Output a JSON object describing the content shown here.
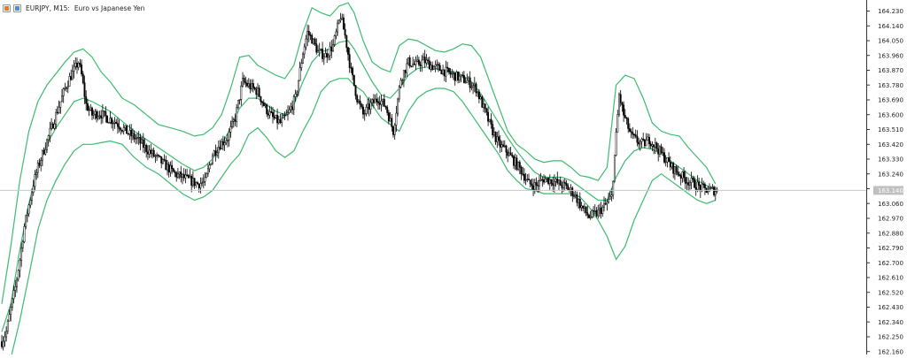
{
  "header": {
    "symbol": "EURJPY, M15:",
    "description": "Euro vs Japanese Yen"
  },
  "price_axis": {
    "ticks": [
      "164.230",
      "164.140",
      "164.050",
      "163.960",
      "163.870",
      "163.780",
      "163.690",
      "163.600",
      "163.510",
      "163.420",
      "163.330",
      "163.240",
      "163.150",
      "163.060",
      "162.970",
      "162.880",
      "162.790",
      "162.700",
      "162.610",
      "162.520",
      "162.430",
      "162.340",
      "162.250",
      "162.160"
    ],
    "current_price": 163.14,
    "current_price_label": "163.140"
  },
  "chart_data": {
    "type": "candlestick",
    "symbol": "EURJPY",
    "timeframe": "M15",
    "indicator": "Bollinger Bands",
    "grid": false,
    "ylim": [
      162.13,
      164.3
    ],
    "anchors": [
      [
        0,
        162.22
      ],
      [
        3,
        162.28
      ],
      [
        6,
        162.42
      ],
      [
        9,
        162.55
      ],
      [
        12,
        162.72
      ],
      [
        15,
        162.92
      ],
      [
        18,
        163.05
      ],
      [
        21,
        163.18
      ],
      [
        24,
        163.28
      ],
      [
        27,
        163.36
      ],
      [
        30,
        163.44
      ],
      [
        33,
        163.52
      ],
      [
        36,
        163.6
      ],
      [
        39,
        163.68
      ],
      [
        42,
        163.76
      ],
      [
        45,
        163.82
      ],
      [
        48,
        163.87
      ],
      [
        51,
        163.92
      ],
      [
        53,
        163.84
      ],
      [
        56,
        163.66
      ],
      [
        60,
        163.6
      ],
      [
        65,
        163.61
      ],
      [
        70,
        163.58
      ],
      [
        75,
        163.56
      ],
      [
        80,
        163.52
      ],
      [
        85,
        163.48
      ],
      [
        90,
        163.45
      ],
      [
        95,
        163.4
      ],
      [
        100,
        163.36
      ],
      [
        105,
        163.32
      ],
      [
        110,
        163.28
      ],
      [
        115,
        163.24
      ],
      [
        120,
        163.22
      ],
      [
        125,
        163.2
      ],
      [
        130,
        163.18
      ],
      [
        135,
        163.19
      ],
      [
        140,
        163.36
      ],
      [
        145,
        163.42
      ],
      [
        150,
        163.46
      ],
      [
        155,
        163.58
      ],
      [
        160,
        163.8
      ],
      [
        165,
        163.77
      ],
      [
        170,
        163.74
      ],
      [
        175,
        163.64
      ],
      [
        180,
        163.58
      ],
      [
        185,
        163.55
      ],
      [
        190,
        163.6
      ],
      [
        195,
        163.7
      ],
      [
        200,
        163.98
      ],
      [
        203,
        164.1
      ],
      [
        206,
        164.06
      ],
      [
        210,
        163.98
      ],
      [
        215,
        163.96
      ],
      [
        220,
        164.02
      ],
      [
        225,
        164.2
      ],
      [
        228,
        164.08
      ],
      [
        232,
        163.86
      ],
      [
        236,
        163.7
      ],
      [
        240,
        163.6
      ],
      [
        245,
        163.66
      ],
      [
        250,
        163.7
      ],
      [
        255,
        163.65
      ],
      [
        260,
        163.5
      ],
      [
        265,
        163.82
      ],
      [
        270,
        163.92
      ],
      [
        275,
        163.9
      ],
      [
        280,
        163.93
      ],
      [
        285,
        163.9
      ],
      [
        290,
        163.88
      ],
      [
        295,
        163.86
      ],
      [
        300,
        163.84
      ],
      [
        305,
        163.82
      ],
      [
        310,
        163.8
      ],
      [
        315,
        163.76
      ],
      [
        320,
        163.64
      ],
      [
        325,
        163.52
      ],
      [
        330,
        163.42
      ],
      [
        335,
        163.38
      ],
      [
        340,
        163.32
      ],
      [
        345,
        163.26
      ],
      [
        350,
        163.18
      ],
      [
        355,
        163.17
      ],
      [
        360,
        163.21
      ],
      [
        365,
        163.2
      ],
      [
        370,
        163.18
      ],
      [
        375,
        163.16
      ],
      [
        380,
        163.12
      ],
      [
        385,
        163.04
      ],
      [
        390,
        162.98
      ],
      [
        395,
        163.0
      ],
      [
        400,
        163.04
      ],
      [
        405,
        163.1
      ],
      [
        410,
        163.72
      ],
      [
        413,
        163.6
      ],
      [
        418,
        163.47
      ],
      [
        422,
        163.44
      ],
      [
        426,
        163.42
      ],
      [
        430,
        163.45
      ],
      [
        435,
        163.4
      ],
      [
        440,
        163.34
      ],
      [
        445,
        163.28
      ],
      [
        450,
        163.24
      ],
      [
        455,
        163.2
      ],
      [
        460,
        163.18
      ],
      [
        465,
        163.15
      ],
      [
        470,
        163.14
      ],
      [
        475,
        163.14
      ]
    ],
    "bollinger_bands": {
      "upper": [
        [
          0,
          162.45
        ],
        [
          6,
          162.8
        ],
        [
          12,
          163.2
        ],
        [
          18,
          163.5
        ],
        [
          24,
          163.68
        ],
        [
          30,
          163.78
        ],
        [
          36,
          163.85
        ],
        [
          42,
          163.92
        ],
        [
          48,
          163.98
        ],
        [
          54,
          164.0
        ],
        [
          60,
          163.95
        ],
        [
          66,
          163.86
        ],
        [
          72,
          163.8
        ],
        [
          80,
          163.7
        ],
        [
          88,
          163.66
        ],
        [
          96,
          163.6
        ],
        [
          104,
          163.54
        ],
        [
          112,
          163.52
        ],
        [
          120,
          163.5
        ],
        [
          128,
          163.47
        ],
        [
          134,
          163.48
        ],
        [
          140,
          163.52
        ],
        [
          146,
          163.6
        ],
        [
          152,
          163.76
        ],
        [
          158,
          163.95
        ],
        [
          164,
          163.96
        ],
        [
          170,
          163.9
        ],
        [
          176,
          163.87
        ],
        [
          182,
          163.84
        ],
        [
          188,
          163.82
        ],
        [
          194,
          163.9
        ],
        [
          200,
          164.1
        ],
        [
          206,
          164.25
        ],
        [
          212,
          164.22
        ],
        [
          218,
          164.2
        ],
        [
          224,
          164.26
        ],
        [
          230,
          164.28
        ],
        [
          234,
          164.22
        ],
        [
          240,
          164.05
        ],
        [
          246,
          163.92
        ],
        [
          252,
          163.88
        ],
        [
          258,
          163.86
        ],
        [
          264,
          164.02
        ],
        [
          270,
          164.06
        ],
        [
          276,
          164.05
        ],
        [
          282,
          164.02
        ],
        [
          288,
          163.99
        ],
        [
          294,
          163.98
        ],
        [
          300,
          164.0
        ],
        [
          306,
          164.03
        ],
        [
          312,
          164.02
        ],
        [
          318,
          163.95
        ],
        [
          324,
          163.8
        ],
        [
          330,
          163.65
        ],
        [
          336,
          163.5
        ],
        [
          342,
          163.42
        ],
        [
          348,
          163.38
        ],
        [
          354,
          163.33
        ],
        [
          360,
          163.31
        ],
        [
          366,
          163.32
        ],
        [
          372,
          163.32
        ],
        [
          378,
          163.28
        ],
        [
          384,
          163.23
        ],
        [
          390,
          163.22
        ],
        [
          396,
          163.2
        ],
        [
          402,
          163.28
        ],
        [
          408,
          163.78
        ],
        [
          414,
          163.84
        ],
        [
          420,
          163.82
        ],
        [
          426,
          163.7
        ],
        [
          432,
          163.55
        ],
        [
          438,
          163.5
        ],
        [
          444,
          163.48
        ],
        [
          450,
          163.47
        ],
        [
          456,
          163.4
        ],
        [
          462,
          163.34
        ],
        [
          468,
          163.28
        ],
        [
          474,
          163.18
        ]
      ],
      "middle": [
        [
          0,
          162.28
        ],
        [
          6,
          162.45
        ],
        [
          12,
          162.78
        ],
        [
          18,
          163.06
        ],
        [
          24,
          163.28
        ],
        [
          30,
          163.42
        ],
        [
          36,
          163.52
        ],
        [
          42,
          163.6
        ],
        [
          48,
          163.68
        ],
        [
          54,
          163.7
        ],
        [
          60,
          163.68
        ],
        [
          66,
          163.65
        ],
        [
          72,
          163.62
        ],
        [
          80,
          163.56
        ],
        [
          88,
          163.5
        ],
        [
          96,
          163.45
        ],
        [
          104,
          163.4
        ],
        [
          112,
          163.35
        ],
        [
          120,
          163.3
        ],
        [
          128,
          163.26
        ],
        [
          134,
          163.28
        ],
        [
          140,
          163.33
        ],
        [
          146,
          163.42
        ],
        [
          152,
          163.52
        ],
        [
          158,
          163.64
        ],
        [
          164,
          163.7
        ],
        [
          170,
          163.7
        ],
        [
          176,
          163.66
        ],
        [
          182,
          163.62
        ],
        [
          188,
          163.6
        ],
        [
          194,
          163.66
        ],
        [
          200,
          163.8
        ],
        [
          206,
          163.92
        ],
        [
          212,
          163.98
        ],
        [
          218,
          164.0
        ],
        [
          224,
          164.04
        ],
        [
          230,
          164.05
        ],
        [
          234,
          164.0
        ],
        [
          240,
          163.9
        ],
        [
          246,
          163.8
        ],
        [
          252,
          163.72
        ],
        [
          258,
          163.7
        ],
        [
          264,
          163.76
        ],
        [
          270,
          163.84
        ],
        [
          276,
          163.88
        ],
        [
          282,
          163.89
        ],
        [
          288,
          163.88
        ],
        [
          294,
          163.87
        ],
        [
          300,
          163.86
        ],
        [
          306,
          163.84
        ],
        [
          312,
          163.8
        ],
        [
          318,
          163.73
        ],
        [
          324,
          163.64
        ],
        [
          330,
          163.55
        ],
        [
          336,
          163.46
        ],
        [
          342,
          163.38
        ],
        [
          348,
          163.31
        ],
        [
          354,
          163.25
        ],
        [
          360,
          163.22
        ],
        [
          366,
          163.22
        ],
        [
          372,
          163.22
        ],
        [
          378,
          163.2
        ],
        [
          384,
          163.16
        ],
        [
          390,
          163.12
        ],
        [
          396,
          163.08
        ],
        [
          402,
          163.08
        ],
        [
          408,
          163.22
        ],
        [
          414,
          163.32
        ],
        [
          420,
          163.38
        ],
        [
          426,
          163.4
        ],
        [
          432,
          163.39
        ],
        [
          438,
          163.36
        ],
        [
          444,
          163.32
        ],
        [
          450,
          163.28
        ],
        [
          456,
          163.24
        ],
        [
          462,
          163.2
        ],
        [
          468,
          163.17
        ],
        [
          474,
          163.14
        ]
      ],
      "lower": [
        [
          0,
          162.1
        ],
        [
          6,
          162.12
        ],
        [
          12,
          162.35
        ],
        [
          18,
          162.62
        ],
        [
          24,
          162.9
        ],
        [
          30,
          163.08
        ],
        [
          36,
          163.2
        ],
        [
          42,
          163.3
        ],
        [
          48,
          163.38
        ],
        [
          54,
          163.42
        ],
        [
          60,
          163.42
        ],
        [
          66,
          163.43
        ],
        [
          72,
          163.44
        ],
        [
          80,
          163.42
        ],
        [
          88,
          163.34
        ],
        [
          96,
          163.28
        ],
        [
          104,
          163.24
        ],
        [
          112,
          163.18
        ],
        [
          120,
          163.12
        ],
        [
          128,
          163.08
        ],
        [
          134,
          163.1
        ],
        [
          140,
          163.14
        ],
        [
          146,
          163.22
        ],
        [
          152,
          163.3
        ],
        [
          158,
          163.36
        ],
        [
          164,
          163.48
        ],
        [
          170,
          163.52
        ],
        [
          176,
          163.46
        ],
        [
          182,
          163.38
        ],
        [
          188,
          163.34
        ],
        [
          194,
          163.38
        ],
        [
          200,
          163.5
        ],
        [
          206,
          163.6
        ],
        [
          212,
          163.74
        ],
        [
          218,
          163.8
        ],
        [
          224,
          163.82
        ],
        [
          230,
          163.82
        ],
        [
          234,
          163.78
        ],
        [
          240,
          163.74
        ],
        [
          246,
          163.66
        ],
        [
          252,
          163.58
        ],
        [
          258,
          163.54
        ],
        [
          264,
          163.5
        ],
        [
          270,
          163.62
        ],
        [
          276,
          163.7
        ],
        [
          282,
          163.74
        ],
        [
          288,
          163.76
        ],
        [
          294,
          163.76
        ],
        [
          300,
          163.74
        ],
        [
          306,
          163.68
        ],
        [
          312,
          163.6
        ],
        [
          318,
          163.52
        ],
        [
          324,
          163.44
        ],
        [
          330,
          163.36
        ],
        [
          336,
          163.26
        ],
        [
          342,
          163.2
        ],
        [
          348,
          163.15
        ],
        [
          354,
          163.14
        ],
        [
          360,
          163.12
        ],
        [
          366,
          163.12
        ],
        [
          372,
          163.12
        ],
        [
          378,
          163.12
        ],
        [
          384,
          163.1
        ],
        [
          390,
          163.04
        ],
        [
          396,
          162.96
        ],
        [
          402,
          162.86
        ],
        [
          408,
          162.72
        ],
        [
          414,
          162.8
        ],
        [
          420,
          162.96
        ],
        [
          426,
          163.08
        ],
        [
          432,
          163.2
        ],
        [
          438,
          163.24
        ],
        [
          444,
          163.2
        ],
        [
          450,
          163.16
        ],
        [
          456,
          163.12
        ],
        [
          462,
          163.08
        ],
        [
          468,
          163.06
        ],
        [
          474,
          163.08
        ]
      ]
    },
    "colors": {
      "bull": "#ffffff",
      "bear": "#000000",
      "wick": "#000000",
      "bands": "#3dbb6e",
      "axis": "#333333",
      "price_line": "#c8c8c8",
      "price_label_bg": "#c0c0c0"
    }
  }
}
